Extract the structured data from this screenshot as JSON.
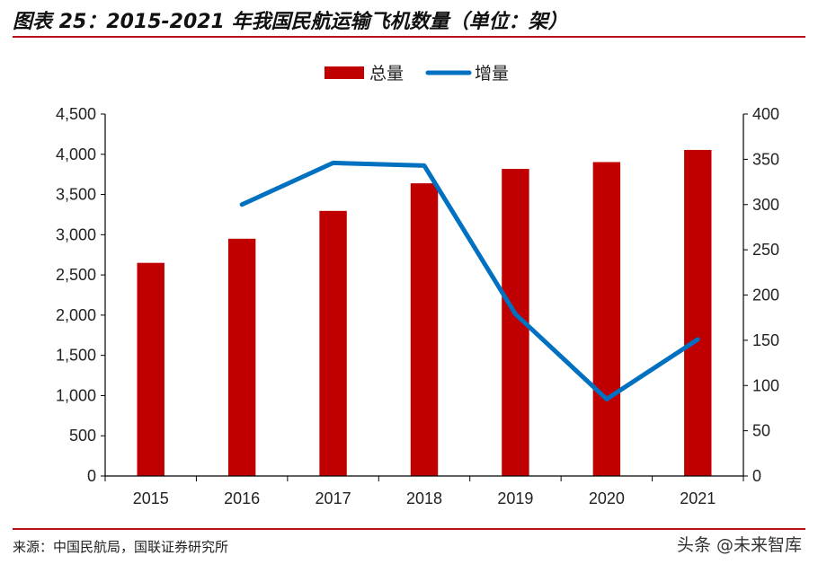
{
  "page": {
    "title": "图表 25：2015-2021 年我国民航运输飞机数量（单位：架）",
    "source": "来源：中国民航局，国联证券研究所",
    "watermark": "头条 @未来智库"
  },
  "chart_data": {
    "type": "bar",
    "categories": [
      "2015",
      "2016",
      "2017",
      "2018",
      "2019",
      "2020",
      "2021"
    ],
    "series": [
      {
        "name": "总量",
        "type": "bar",
        "axis": "left",
        "color": "#c00000",
        "values": [
          2650,
          2950,
          3296,
          3639,
          3818,
          3903,
          4054
        ]
      },
      {
        "name": "增量",
        "type": "line",
        "axis": "right",
        "color": "#0070c0",
        "values": [
          null,
          300,
          346,
          343,
          179,
          85,
          151
        ]
      }
    ],
    "y_left": {
      "min": 0,
      "max": 4500,
      "step": 500,
      "tick_labels": [
        "0",
        "500",
        "1,000",
        "1,500",
        "2,000",
        "2,500",
        "3,000",
        "3,500",
        "4,000",
        "4,500"
      ]
    },
    "y_right": {
      "min": 0,
      "max": 400,
      "step": 50,
      "tick_labels": [
        "0",
        "50",
        "100",
        "150",
        "200",
        "250",
        "300",
        "350",
        "400"
      ]
    },
    "legend": {
      "position": "top-center"
    },
    "grid": false
  }
}
